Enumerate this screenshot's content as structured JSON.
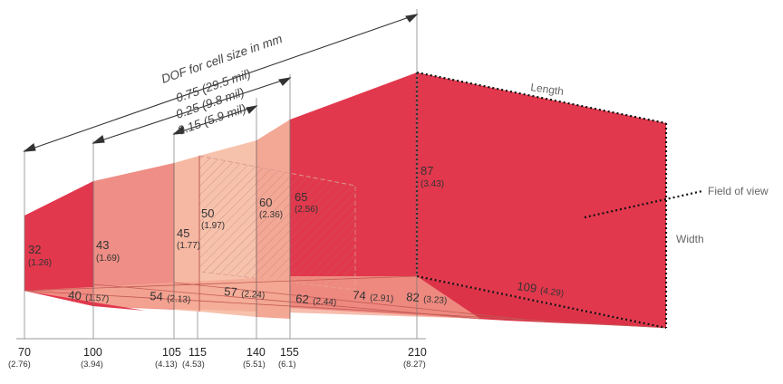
{
  "diagram": {
    "dof_title": "DOF for cell size in mm",
    "dof_labels": [
      "0.75 (29.5 mil)",
      "0.25 (9.8 mil)",
      "0.15  (5.9 mil)"
    ],
    "side_labels": {
      "length": "Length",
      "field_of_view": "Field of view",
      "width": "Width"
    },
    "heights": [
      {
        "value": "32",
        "inch": "(1.26)"
      },
      {
        "value": "43",
        "inch": "(1.69)"
      },
      {
        "value": "45",
        "inch": "(1.77)"
      },
      {
        "value": "50",
        "inch": "(1.97)"
      },
      {
        "value": "60",
        "inch": "(2.36)"
      },
      {
        "value": "65",
        "inch": "(2.56)"
      },
      {
        "value": "87",
        "inch": "(3.43)"
      }
    ],
    "widths": [
      {
        "value": "40",
        "inch": "(1.57)"
      },
      {
        "value": "54",
        "inch": "(2.13)"
      },
      {
        "value": "57",
        "inch": "(2.24)"
      },
      {
        "value": "62",
        "inch": "(2.44)"
      },
      {
        "value": "74",
        "inch": "(2.91)"
      },
      {
        "value": "82",
        "inch": "(3.23)"
      },
      {
        "value": "109",
        "inch": "(4.29)"
      }
    ],
    "distances": [
      {
        "value": "70",
        "inch": "(2.76)"
      },
      {
        "value": "100",
        "inch": "(3.94)"
      },
      {
        "value": "105",
        "inch": "(4.13)"
      },
      {
        "value": "115",
        "inch": "(4.53)"
      },
      {
        "value": "140",
        "inch": "(5.51)"
      },
      {
        "value": "155",
        "inch": "(6.1)"
      },
      {
        "value": "210",
        "inch": "(8.27)"
      }
    ],
    "colors": {
      "dark": "#e2384d",
      "mid": "#ee7f7a",
      "light": "#f5b49c",
      "pale": "#f9cdb8"
    }
  }
}
